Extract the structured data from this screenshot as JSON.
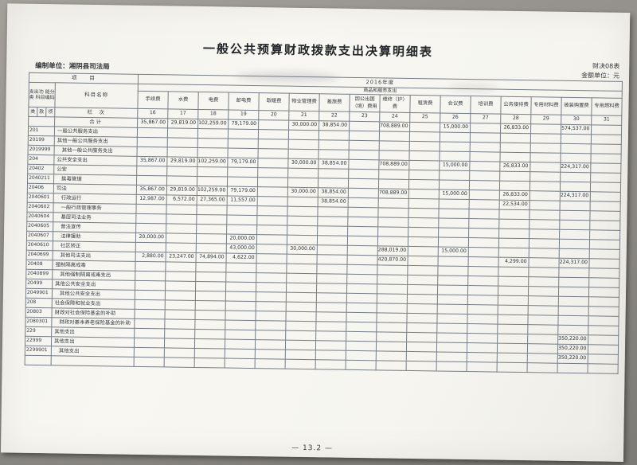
{
  "page": {
    "title": "一般公共预算财政拨款支出决算明细表",
    "preparer": "编制单位：湘阴县司法局",
    "form_no": "财决08表",
    "unit_note": "金额单位：元",
    "year": "2016年度",
    "item_header": "项　　目",
    "group_header": "商品和服务支出",
    "func_class_label": "支出功 能分类 科目编码",
    "subject_name_label": "科目名称",
    "class_cols": [
      "类",
      "款",
      "项"
    ],
    "lane_label": "栏　次",
    "footer": "— 13.2 —"
  },
  "columns": [
    {
      "name": "手续费",
      "no": "16"
    },
    {
      "name": "水费",
      "no": "17"
    },
    {
      "name": "电费",
      "no": "18"
    },
    {
      "name": "邮电费",
      "no": "19"
    },
    {
      "name": "取暖费",
      "no": "20"
    },
    {
      "name": "物业管理费",
      "no": "21"
    },
    {
      "name": "差旅费",
      "no": "22"
    },
    {
      "name": "因公出国（境）费用",
      "no": "23"
    },
    {
      "name": "维修（护）费",
      "no": "24"
    },
    {
      "name": "租赁费",
      "no": "25"
    },
    {
      "name": "会议费",
      "no": "26"
    },
    {
      "name": "培训费",
      "no": "27"
    },
    {
      "name": "公务接待费",
      "no": "28"
    },
    {
      "name": "专用材料费",
      "no": "29"
    },
    {
      "name": "被装购置费",
      "no": "30"
    },
    {
      "name": "专用燃料费",
      "no": "31"
    }
  ],
  "rows": [
    {
      "code": "",
      "name": "合计",
      "center": true,
      "indent": false,
      "values": [
        "35,867.00",
        "29,819.00",
        "102,259.00",
        "79,179.00",
        "",
        "30,000.00",
        "38,854.00",
        "",
        "708,889.00",
        "",
        "15,000.00",
        "",
        "26,833.00",
        "",
        "574,537.00",
        ""
      ]
    },
    {
      "code": "201",
      "name": "一般公共服务支出",
      "indent": false,
      "values": [
        "",
        "",
        "",
        "",
        "",
        "",
        "",
        "",
        "",
        "",
        "",
        "",
        "",
        "",
        "",
        ""
      ]
    },
    {
      "code": "20199",
      "name": "其他一般公共服务支出",
      "indent": false,
      "values": [
        "",
        "",
        "",
        "",
        "",
        "",
        "",
        "",
        "",
        "",
        "",
        "",
        "",
        "",
        "",
        ""
      ]
    },
    {
      "code": "2019999",
      "name": "其他一般公共服务支出",
      "indent": true,
      "values": [
        "",
        "",
        "",
        "",
        "",
        "",
        "",
        "",
        "",
        "",
        "",
        "",
        "",
        "",
        "",
        ""
      ]
    },
    {
      "code": "204",
      "name": "公共安全支出",
      "indent": false,
      "values": [
        "35,867.00",
        "29,819.00",
        "102,259.00",
        "79,179.00",
        "",
        "30,000.00",
        "38,854.00",
        "",
        "708,889.00",
        "",
        "15,000.00",
        "",
        "26,833.00",
        "",
        "224,317.00",
        ""
      ]
    },
    {
      "code": "20402",
      "name": "公安",
      "indent": false,
      "values": [
        "",
        "",
        "",
        "",
        "",
        "",
        "",
        "",
        "",
        "",
        "",
        "",
        "",
        "",
        "",
        ""
      ]
    },
    {
      "code": "2040211",
      "name": "禁毒管理",
      "indent": true,
      "values": [
        "",
        "",
        "",
        "",
        "",
        "",
        "",
        "",
        "",
        "",
        "",
        "",
        "",
        "",
        "",
        ""
      ]
    },
    {
      "code": "20406",
      "name": "司法",
      "indent": false,
      "values": [
        "35,867.00",
        "29,819.00",
        "102,259.00",
        "79,179.00",
        "",
        "30,000.00",
        "38,854.00",
        "",
        "708,889.00",
        "",
        "15,000.00",
        "",
        "26,833.00",
        "",
        "224,317.00",
        ""
      ]
    },
    {
      "code": "2040601",
      "name": "行政运行",
      "indent": true,
      "values": [
        "12,987.00",
        "6,572.00",
        "27,365.00",
        "11,557.00",
        "",
        "",
        "38,854.00",
        "",
        "",
        "",
        "",
        "",
        "22,534.00",
        "",
        "",
        ""
      ]
    },
    {
      "code": "2040602",
      "name": "一般行政管理事务",
      "indent": true,
      "values": [
        "",
        "",
        "",
        "",
        "",
        "",
        "",
        "",
        "",
        "",
        "",
        "",
        "",
        "",
        "",
        ""
      ]
    },
    {
      "code": "2040604",
      "name": "基层司法业务",
      "indent": true,
      "values": [
        "",
        "",
        "",
        "",
        "",
        "",
        "",
        "",
        "",
        "",
        "",
        "",
        "",
        "",
        "",
        ""
      ]
    },
    {
      "code": "2040605",
      "name": "普法宣传",
      "indent": true,
      "values": [
        "",
        "",
        "",
        "",
        "",
        "",
        "",
        "",
        "",
        "",
        "",
        "",
        "",
        "",
        "",
        ""
      ]
    },
    {
      "code": "2040607",
      "name": "法律援助",
      "indent": true,
      "values": [
        "20,000.00",
        "",
        "",
        "20,000.00",
        "",
        "",
        "",
        "",
        "",
        "",
        "",
        "",
        "",
        "",
        "",
        ""
      ]
    },
    {
      "code": "2040610",
      "name": "社区矫正",
      "indent": true,
      "values": [
        "",
        "",
        "",
        "43,000.00",
        "",
        "30,000.00",
        "",
        "",
        "288,019.00",
        "",
        "15,000.00",
        "",
        "",
        "",
        "",
        ""
      ]
    },
    {
      "code": "2040699",
      "name": "其他司法支出",
      "indent": true,
      "values": [
        "2,880.00",
        "23,247.00",
        "74,894.00",
        "4,622.00",
        "",
        "",
        "",
        "",
        "420,870.00",
        "",
        "",
        "",
        "4,299.00",
        "",
        "224,317.00",
        ""
      ]
    },
    {
      "code": "20408",
      "name": "强制隔离戒毒",
      "indent": false,
      "values": [
        "",
        "",
        "",
        "",
        "",
        "",
        "",
        "",
        "",
        "",
        "",
        "",
        "",
        "",
        "",
        ""
      ]
    },
    {
      "code": "2040899",
      "name": "其他强制隔离戒毒支出",
      "indent": true,
      "values": [
        "",
        "",
        "",
        "",
        "",
        "",
        "",
        "",
        "",
        "",
        "",
        "",
        "",
        "",
        "",
        ""
      ]
    },
    {
      "code": "20499",
      "name": "其他公共安全支出",
      "indent": false,
      "values": [
        "",
        "",
        "",
        "",
        "",
        "",
        "",
        "",
        "",
        "",
        "",
        "",
        "",
        "",
        "",
        ""
      ]
    },
    {
      "code": "2049901",
      "name": "其他公共安全支出",
      "indent": true,
      "values": [
        "",
        "",
        "",
        "",
        "",
        "",
        "",
        "",
        "",
        "",
        "",
        "",
        "",
        "",
        "",
        ""
      ]
    },
    {
      "code": "208",
      "name": "社会保障和就业支出",
      "indent": false,
      "values": [
        "",
        "",
        "",
        "",
        "",
        "",
        "",
        "",
        "",
        "",
        "",
        "",
        "",
        "",
        "",
        ""
      ]
    },
    {
      "code": "20803",
      "name": "财政对社会保险基金的补助",
      "indent": false,
      "values": [
        "",
        "",
        "",
        "",
        "",
        "",
        "",
        "",
        "",
        "",
        "",
        "",
        "",
        "",
        "",
        ""
      ]
    },
    {
      "code": "2080301",
      "name": "财政对基本养老保险基金的补助",
      "indent": true,
      "values": [
        "",
        "",
        "",
        "",
        "",
        "",
        "",
        "",
        "",
        "",
        "",
        "",
        "",
        "",
        "",
        ""
      ]
    },
    {
      "code": "229",
      "name": "其他支出",
      "indent": false,
      "values": [
        "",
        "",
        "",
        "",
        "",
        "",
        "",
        "",
        "",
        "",
        "",
        "",
        "",
        "",
        "350,220.00",
        ""
      ]
    },
    {
      "code": "22999",
      "name": "其他支出",
      "indent": false,
      "values": [
        "",
        "",
        "",
        "",
        "",
        "",
        "",
        "",
        "",
        "",
        "",
        "",
        "",
        "",
        "350,220.00",
        ""
      ]
    },
    {
      "code": "2299901",
      "name": "其他支出",
      "indent": true,
      "values": [
        "",
        "",
        "",
        "",
        "",
        "",
        "",
        "",
        "",
        "",
        "",
        "",
        "",
        "",
        "350,220.00",
        ""
      ]
    },
    {
      "code": "",
      "name": "",
      "indent": false,
      "values": [
        "",
        "",
        "",
        "",
        "",
        "",
        "",
        "",
        "",
        "",
        "",
        "",
        "",
        "",
        "",
        ""
      ]
    }
  ]
}
